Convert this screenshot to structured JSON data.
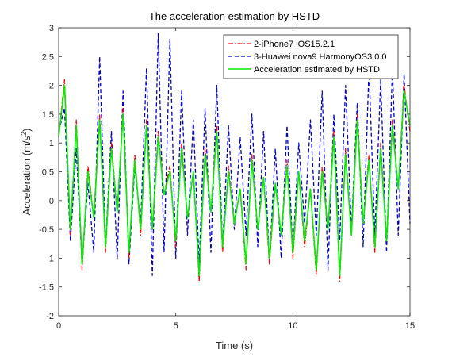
{
  "chart_data": {
    "type": "line",
    "title": "The acceleration estimation by HSTD",
    "xlabel": "Time (s)",
    "ylabel_main": "Acceleration (m/s",
    "ylabel_sup": "2",
    "ylabel_close": ")",
    "xlim": [
      0,
      15
    ],
    "ylim": [
      -2,
      3
    ],
    "xticks": [
      0,
      5,
      10,
      15
    ],
    "xtick_labels": [
      "0",
      "5",
      "10",
      "15"
    ],
    "yticks": [
      -2,
      -1.5,
      -1,
      -0.5,
      0,
      0.5,
      1,
      1.5,
      2,
      2.5,
      3
    ],
    "ytick_labels": [
      "-2",
      "-1.5",
      "-1",
      "-0.5",
      "0",
      "0.5",
      "1",
      "1.5",
      "2",
      "2.5",
      "3"
    ],
    "grid": false,
    "legend_position": "top-right",
    "series": [
      {
        "name": "2-iPhone7 iOS15.2.1",
        "color": "#ff0000",
        "style": "dashdot",
        "x": [
          0,
          0.25,
          0.5,
          0.75,
          1.0,
          1.25,
          1.5,
          1.75,
          2.0,
          2.25,
          2.5,
          2.75,
          3.0,
          3.25,
          3.5,
          3.75,
          4.0,
          4.25,
          4.5,
          4.75,
          5.0,
          5.25,
          5.5,
          5.75,
          6.0,
          6.25,
          6.5,
          6.75,
          7.0,
          7.25,
          7.5,
          7.75,
          8.0,
          8.25,
          8.5,
          8.75,
          9.0,
          9.25,
          9.5,
          9.75,
          10.0,
          10.25,
          10.5,
          10.75,
          11.0,
          11.25,
          11.5,
          11.75,
          12.0,
          12.25,
          12.5,
          12.75,
          13.0,
          13.25,
          13.5,
          13.75,
          14.0,
          14.25,
          14.5,
          14.75,
          15.0
        ],
        "y": [
          1.1,
          2.1,
          -0.6,
          1.4,
          -1.2,
          0.6,
          -0.3,
          1.5,
          -0.9,
          1.0,
          -0.2,
          1.6,
          -1.0,
          0.8,
          -0.6,
          1.4,
          -0.5,
          1.2,
          0.1,
          0.6,
          -0.8,
          1.0,
          -0.3,
          0.5,
          -1.4,
          0.9,
          -0.2,
          1.3,
          -0.9,
          0.6,
          -0.4,
          0.2,
          -1.2,
          0.8,
          -0.5,
          0.4,
          -1.1,
          0.3,
          -0.6,
          0.7,
          -1.0,
          0.5,
          -0.8,
          0.2,
          -1.3,
          0.6,
          -0.5,
          1.2,
          -1.4,
          0.9,
          -0.6,
          1.5,
          -0.4,
          0.8,
          -0.9,
          1.0,
          -0.7,
          1.4,
          0.2,
          2.0,
          1.2
        ]
      },
      {
        "name": "3-Huawei nova9 HarmonyOS3.0.0",
        "color": "#0000cc",
        "style": "dash",
        "x": [
          0,
          0.25,
          0.5,
          0.75,
          1.0,
          1.25,
          1.5,
          1.75,
          2.0,
          2.25,
          2.5,
          2.75,
          3.0,
          3.25,
          3.5,
          3.75,
          4.0,
          4.25,
          4.5,
          4.75,
          5.0,
          5.25,
          5.5,
          5.75,
          6.0,
          6.25,
          6.5,
          6.75,
          7.0,
          7.25,
          7.5,
          7.75,
          8.0,
          8.25,
          8.5,
          8.75,
          9.0,
          9.25,
          9.5,
          9.75,
          10.0,
          10.25,
          10.5,
          10.75,
          11.0,
          11.25,
          11.5,
          11.75,
          12.0,
          12.25,
          12.5,
          12.75,
          13.0,
          13.25,
          13.5,
          13.75,
          14.0,
          14.25,
          14.5,
          14.75,
          15.0
        ],
        "y": [
          1.2,
          1.6,
          -0.7,
          0.9,
          -1.1,
          0.3,
          -0.9,
          2.5,
          -0.8,
          1.2,
          -1.0,
          1.9,
          -1.1,
          0.6,
          -0.4,
          2.3,
          -1.3,
          2.9,
          -0.9,
          2.8,
          -1.0,
          1.9,
          -0.6,
          1.4,
          -1.1,
          1.6,
          -0.9,
          2.0,
          -0.8,
          1.3,
          -0.5,
          1.1,
          -0.6,
          1.5,
          -0.8,
          1.2,
          -1.1,
          0.9,
          -1.0,
          1.3,
          -0.9,
          1.0,
          -0.4,
          1.4,
          -0.6,
          1.9,
          -1.2,
          1.5,
          -0.7,
          2.0,
          -0.5,
          1.7,
          -0.8,
          2.3,
          -0.6,
          2.1,
          -0.9,
          2.3,
          -0.6,
          2.2,
          -0.4
        ]
      },
      {
        "name": "Acceleration estimated by HSTD",
        "color": "#00ee00",
        "style": "solid",
        "x": [
          0,
          0.25,
          0.5,
          0.75,
          1.0,
          1.25,
          1.5,
          1.75,
          2.0,
          2.25,
          2.5,
          2.75,
          3.0,
          3.25,
          3.5,
          3.75,
          4.0,
          4.25,
          4.5,
          4.75,
          5.0,
          5.25,
          5.5,
          5.75,
          6.0,
          6.25,
          6.5,
          6.75,
          7.0,
          7.25,
          7.5,
          7.75,
          8.0,
          8.25,
          8.5,
          8.75,
          9.0,
          9.25,
          9.5,
          9.75,
          10.0,
          10.25,
          10.5,
          10.75,
          11.0,
          11.25,
          11.5,
          11.75,
          12.0,
          12.25,
          12.5,
          12.75,
          13.0,
          13.25,
          13.5,
          13.75,
          14.0,
          14.25,
          14.5,
          14.75,
          15.0
        ],
        "y": [
          1.1,
          2.0,
          -0.5,
          1.3,
          -1.1,
          0.5,
          -0.3,
          1.4,
          -0.8,
          0.9,
          -0.2,
          1.5,
          -0.9,
          0.7,
          -0.5,
          1.3,
          -0.5,
          1.1,
          0.1,
          0.5,
          -0.7,
          0.9,
          -0.3,
          0.5,
          -1.3,
          0.8,
          -0.2,
          1.2,
          -0.8,
          0.5,
          -0.4,
          0.2,
          -1.1,
          0.7,
          -0.5,
          0.4,
          -1.0,
          0.3,
          -0.6,
          0.6,
          -0.9,
          0.5,
          -0.7,
          0.2,
          -1.2,
          0.5,
          -0.5,
          1.1,
          -1.3,
          0.8,
          -0.6,
          1.4,
          -0.4,
          0.7,
          -0.8,
          0.9,
          -0.7,
          1.3,
          0.2,
          1.9,
          1.3
        ]
      }
    ]
  }
}
